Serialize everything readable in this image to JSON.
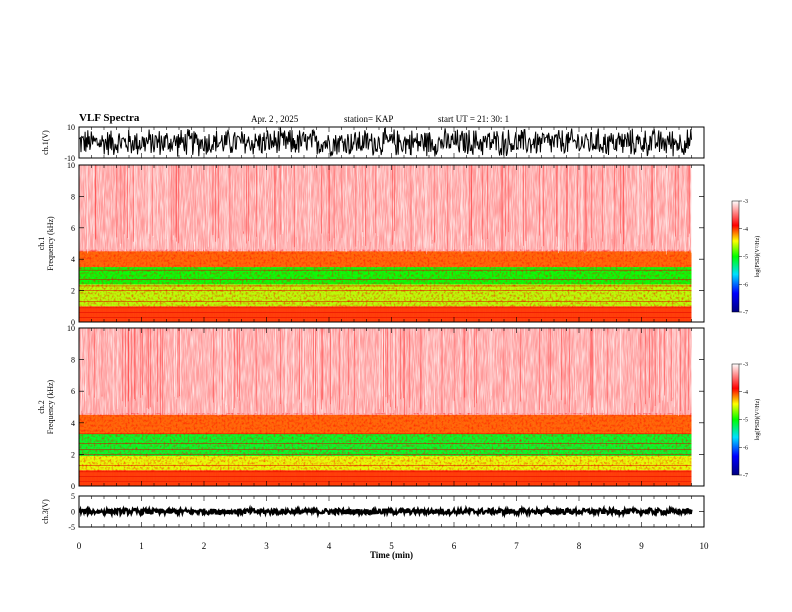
{
  "header": {
    "title": "VLF Spectra",
    "date": "Apr. 2 , 2025",
    "station": "station= KAP",
    "start": "start UT = 21: 30: 1"
  },
  "chart_data": [
    {
      "type": "line",
      "name": "waveform-ch1",
      "ylabel": "ch.1(V)",
      "ylim": [
        -10,
        10
      ],
      "yticks": [
        "10",
        "-10"
      ],
      "xlim": [
        0,
        10
      ],
      "data_range": [
        0,
        9.8
      ],
      "color": "#000000"
    },
    {
      "type": "heatmap",
      "name": "spectrogram-ch1",
      "ylabel": "ch.1\nFrequency (kHz)",
      "ylim": [
        0,
        10
      ],
      "yticks": [
        "0",
        "2",
        "4",
        "6",
        "8",
        "10"
      ],
      "xlim": [
        0,
        10
      ],
      "data_range": [
        0,
        9.8
      ],
      "colorbar": {
        "label": "log(PSD)(V²/Hz)",
        "range": [
          -7,
          -3
        ],
        "ticks": [
          "-3",
          "-4",
          "-5",
          "-6",
          "-7"
        ],
        "colors": [
          "#000080",
          "#0000ff",
          "#00e0ff",
          "#00ff00",
          "#ffff00",
          "#ff0000",
          "#ffffff"
        ]
      },
      "bands": [
        {
          "from": 0,
          "to": 1.0,
          "level": -4.0
        },
        {
          "from": 1.0,
          "to": 2.4,
          "level": -4.6
        },
        {
          "from": 2.4,
          "to": 3.5,
          "level": -5.0
        },
        {
          "from": 3.5,
          "to": 4.5,
          "level": -4.1
        },
        {
          "from": 4.5,
          "to": 10,
          "level": -3.2
        }
      ]
    },
    {
      "type": "heatmap",
      "name": "spectrogram-ch2",
      "ylabel": "ch.2\nFrequency (kHz)",
      "ylim": [
        0,
        10
      ],
      "yticks": [
        "0",
        "2",
        "4",
        "6",
        "8",
        "10"
      ],
      "xlim": [
        0,
        10
      ],
      "data_range": [
        0,
        9.8
      ],
      "colorbar": {
        "label": "log(PSD)(V²/Hz)",
        "range": [
          -7,
          -3
        ],
        "ticks": [
          "-3",
          "-4",
          "-5",
          "-6",
          "-7"
        ],
        "colors": [
          "#000080",
          "#0000ff",
          "#00e0ff",
          "#00ff00",
          "#ffff00",
          "#ff0000",
          "#ffffff"
        ]
      },
      "bands": [
        {
          "from": 0,
          "to": 1.0,
          "level": -4.0
        },
        {
          "from": 1.0,
          "to": 1.9,
          "level": -4.5
        },
        {
          "from": 1.9,
          "to": 3.3,
          "level": -5.1
        },
        {
          "from": 3.3,
          "to": 4.5,
          "level": -4.1
        },
        {
          "from": 4.5,
          "to": 10,
          "level": -3.2
        }
      ]
    },
    {
      "type": "line",
      "name": "waveform-ch3",
      "ylabel": "ch.3(V)",
      "ylim": [
        -5,
        5
      ],
      "yticks": [
        "5",
        "0",
        "-5"
      ],
      "xlim": [
        0,
        10
      ],
      "data_range": [
        0,
        9.8
      ],
      "color": "#000000"
    }
  ],
  "xaxis": {
    "label": "Time (min)",
    "ticks": [
      "0",
      "1",
      "2",
      "3",
      "4",
      "5",
      "6",
      "7",
      "8",
      "9",
      "10"
    ]
  }
}
